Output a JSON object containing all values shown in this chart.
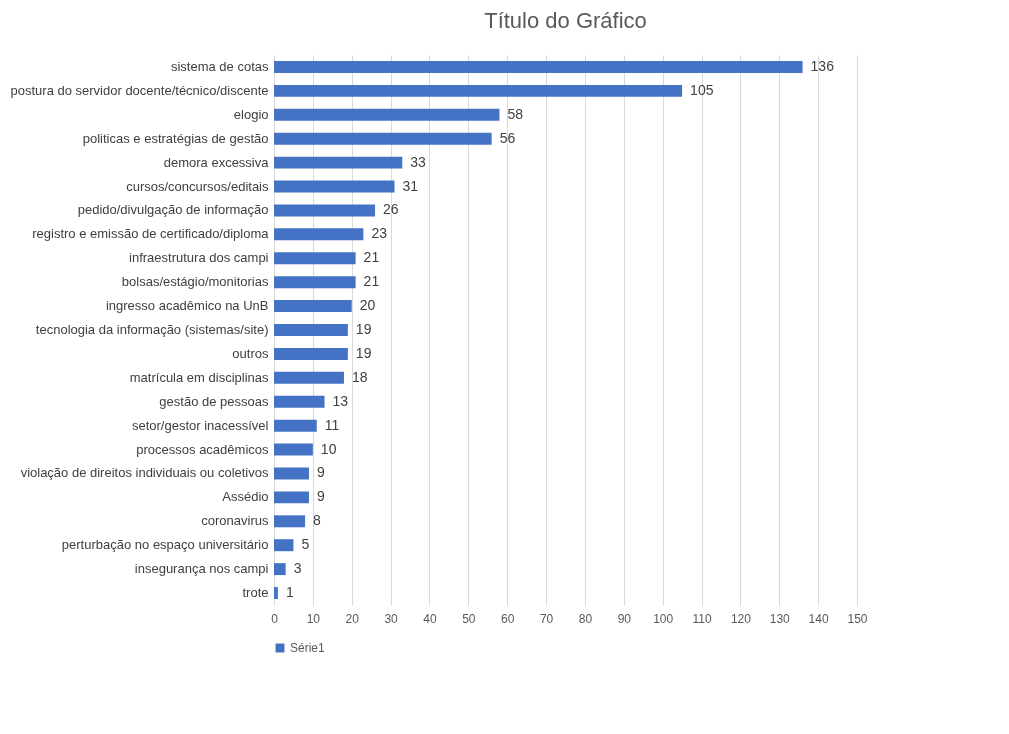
{
  "chart_data": {
    "type": "bar",
    "orientation": "horizontal",
    "title": "Título do Gráfico",
    "categories": [
      "sistema de cotas",
      "postura do servidor docente/técnico/discente",
      "elogio",
      "politicas e estratégias de gestão",
      "demora excessiva",
      "cursos/concursos/editais",
      "pedido/divulgação de informação",
      "registro e emissão de  certificado/diploma",
      "infraestrutura dos campi",
      "bolsas/estágio/monitorias",
      "ingresso acadêmico na UnB",
      "tecnologia da informação (sistemas/site)",
      "outros",
      "matrícula em disciplinas",
      "gestão de pessoas",
      "setor/gestor inacessível",
      "processos acadêmicos",
      "violação de direitos individuais ou coletivos",
      "Assédio",
      "coronavirus",
      "perturbação no espaço universitário",
      "insegurança nos campi",
      "trote"
    ],
    "series": [
      {
        "name": "Série1",
        "color": "#4472c4",
        "values": [
          136,
          105,
          58,
          56,
          33,
          31,
          26,
          23,
          21,
          21,
          20,
          19,
          19,
          18,
          13,
          11,
          10,
          9,
          9,
          8,
          5,
          3,
          1
        ]
      }
    ],
    "xlim": [
      0,
      150
    ],
    "xticks": [
      0,
      10,
      20,
      30,
      40,
      50,
      60,
      70,
      80,
      90,
      100,
      110,
      120,
      130,
      140,
      150
    ],
    "grid": "x",
    "legend": "bottom",
    "data_labels": true
  }
}
